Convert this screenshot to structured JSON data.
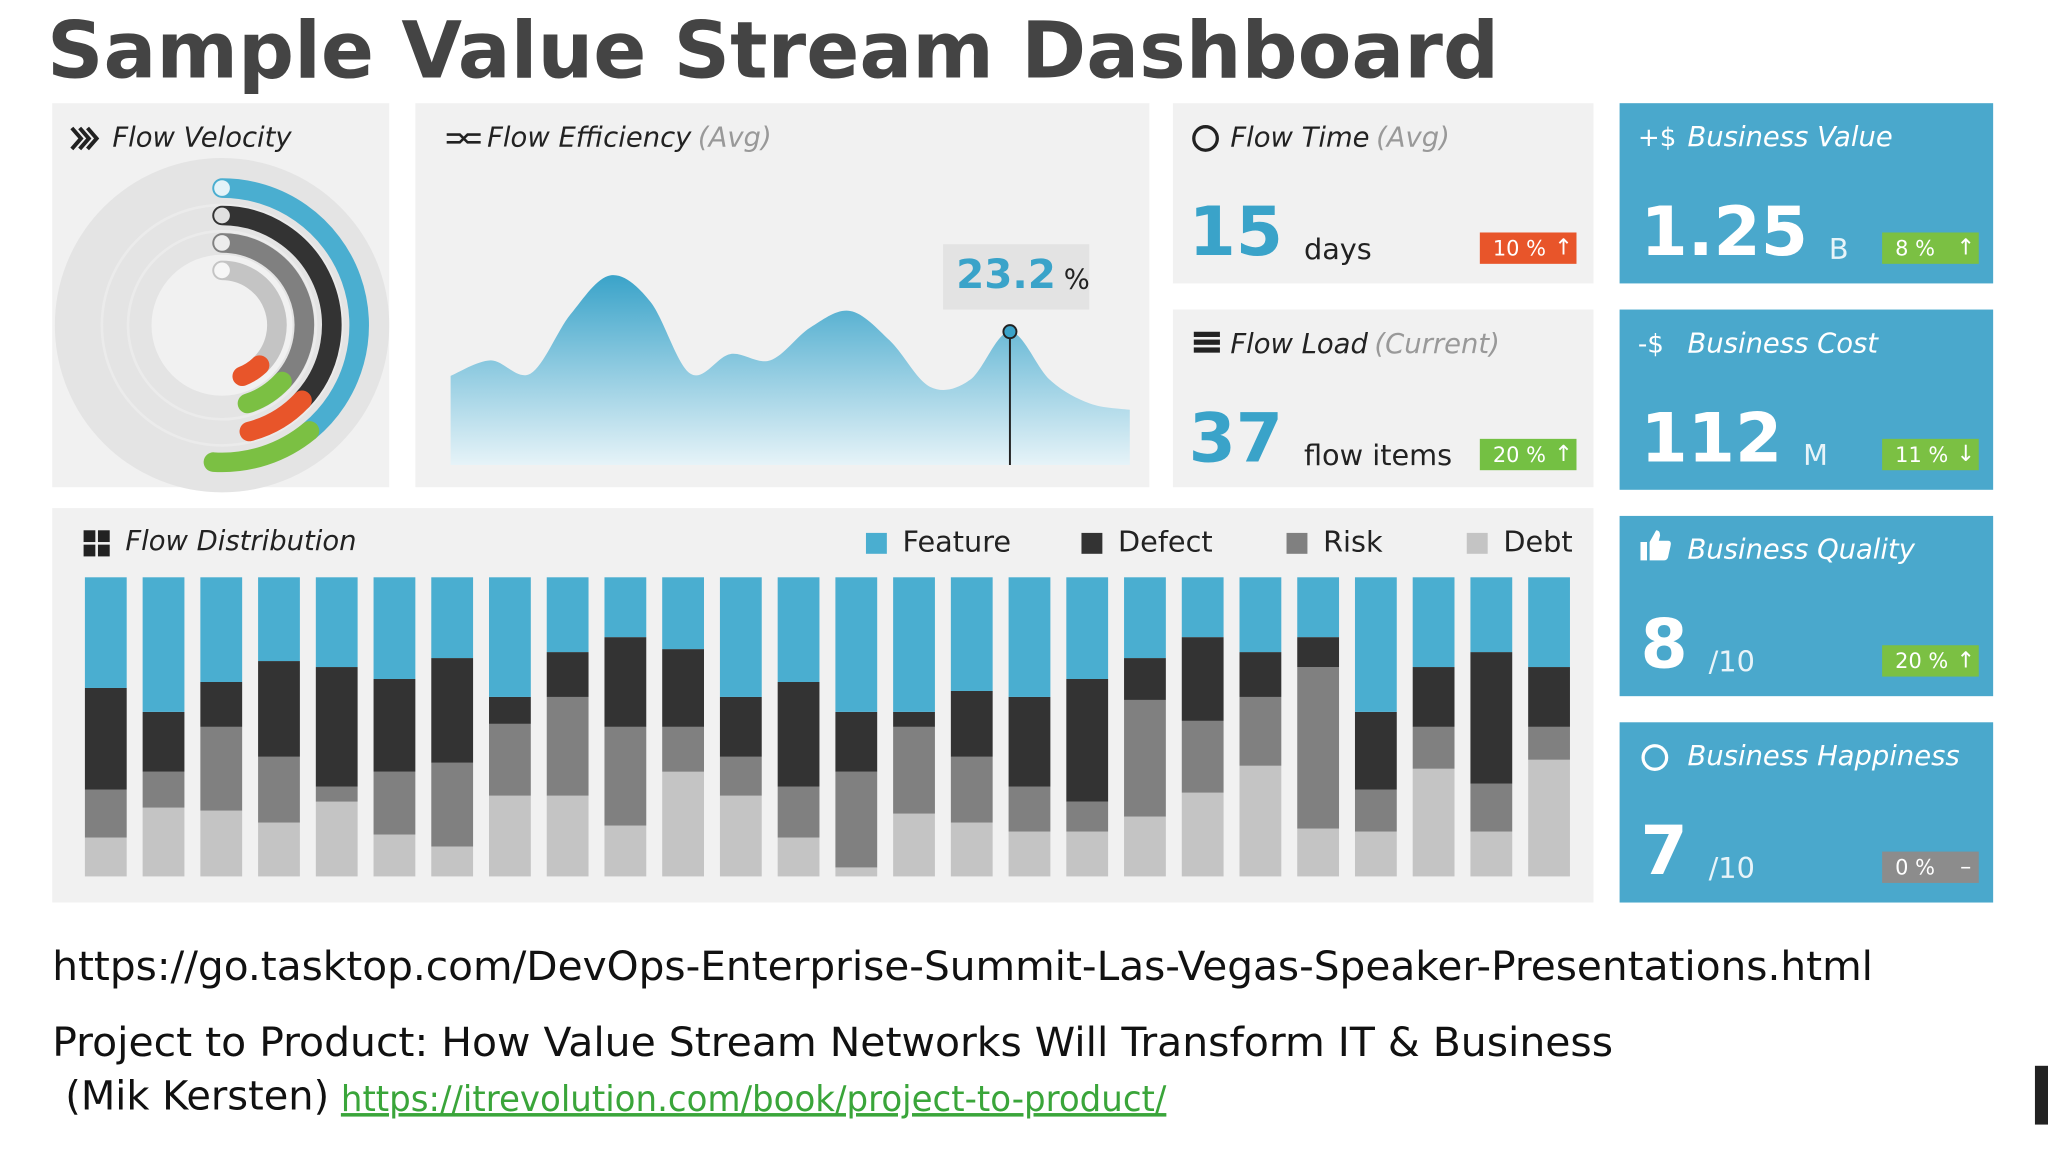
{
  "title": "Sample Value Stream Dashboard",
  "chart_data": [
    {
      "type": "radial",
      "title": "Flow Velocity",
      "rings": [
        {
          "colors": [
            "#4aaed0",
            "#7bc043"
          ],
          "values": [
            39,
            12
          ]
        },
        {
          "colors": [
            "#333333",
            "#e8552a"
          ],
          "values": [
            37,
            9
          ]
        },
        {
          "colors": [
            "#808080",
            "#7bc043"
          ],
          "values": [
            37,
            8
          ]
        },
        {
          "colors": [
            "#c4c4c4",
            "#e8552a"
          ],
          "values": [
            38,
            6
          ]
        }
      ],
      "ylim": [
        0,
        100
      ]
    },
    {
      "type": "area",
      "title": "Flow Efficiency",
      "qualifier": "(Avg)",
      "values": [
        15.5,
        18.2,
        15.9,
        26.2,
        33.0,
        28.4,
        15.9,
        19.3,
        18.2,
        23.9,
        26.8,
        21.6,
        13.6,
        14.8,
        23.2,
        14.8,
        10.7,
        9.6
      ],
      "highlight_index": 14,
      "annotation_unit": "%",
      "color": "#4aaed0",
      "ylim": [
        0,
        40
      ]
    },
    {
      "type": "stacked-bar",
      "title": "Flow Distribution",
      "categories": [
        null,
        null,
        null,
        null,
        null,
        null,
        null,
        null,
        null,
        null,
        null,
        null,
        null,
        null,
        null,
        null,
        null,
        null,
        null,
        null,
        null,
        null,
        null,
        null,
        null,
        null
      ],
      "series": [
        {
          "name": "Feature",
          "color": "#4aaed0",
          "values": [
            37,
            45,
            35,
            28,
            30,
            34,
            27,
            40,
            25,
            20,
            24,
            40,
            35,
            45,
            45,
            38,
            40,
            34,
            27,
            20,
            25,
            20,
            45,
            30,
            25,
            30
          ]
        },
        {
          "name": "Defect",
          "color": "#333333",
          "values": [
            34,
            20,
            15,
            32,
            40,
            31,
            35,
            9,
            15,
            30,
            26,
            20,
            35,
            20,
            5,
            22,
            30,
            41,
            14,
            28,
            15,
            10,
            26,
            20,
            44,
            20
          ]
        },
        {
          "name": "Risk",
          "color": "#808080",
          "values": [
            16,
            12,
            28,
            22,
            5,
            21,
            28,
            24,
            33,
            33,
            15,
            13,
            17,
            32,
            29,
            22,
            15,
            10,
            39,
            24,
            23,
            54,
            14,
            14,
            16,
            11
          ]
        },
        {
          "name": "Debt",
          "color": "#c4c4c4",
          "values": [
            13,
            23,
            22,
            18,
            25,
            14,
            10,
            27,
            27,
            17,
            35,
            27,
            13,
            3,
            21,
            18,
            15,
            15,
            20,
            28,
            37,
            16,
            15,
            36,
            15,
            39
          ]
        }
      ],
      "ylim": [
        0,
        100
      ],
      "legend": "top-right"
    }
  ],
  "metric_cards": [
    {
      "title": "Flow Time",
      "qualifier": "(Avg)",
      "value": "15",
      "unit": "days",
      "change": "10 %",
      "trend": "↑",
      "badge_color": "#e8552a"
    },
    {
      "title": "Flow Load",
      "qualifier": "(Current)",
      "value": "37",
      "unit": "flow items",
      "change": "20 %",
      "trend": "↑",
      "badge_color": "#74c043"
    }
  ],
  "business_cards": [
    {
      "icon": "+$",
      "title": "Business Value",
      "value": "1.25",
      "unit": "B",
      "change": "8 %",
      "trend": "↑",
      "badge_color": "#7bc043"
    },
    {
      "icon": "-$",
      "title": "Business Cost",
      "value": "112",
      "unit": "M",
      "change": "11 %",
      "trend": "↓",
      "badge_color": "#7bc043"
    },
    {
      "title": "Business Quality",
      "value": "8",
      "unit": "/10",
      "change": "20 %",
      "trend": "↑",
      "badge_color": "#7bc043"
    },
    {
      "title": "Business Happiness",
      "value": "7",
      "unit": "/10",
      "change": "0 %",
      "trend": "–",
      "badge_color": "#8c8c8c"
    }
  ],
  "footer": {
    "url": "https://go.tasktop.com/DevOps-Enterprise-Summit-Las-Vegas-Speaker-Presentations.html",
    "book": "Project to Product: How Value Stream Networks Will Transform IT & Business",
    "author": "(Mik Kersten)",
    "link": "https://itrevolution.com/book/project-to-product/"
  }
}
